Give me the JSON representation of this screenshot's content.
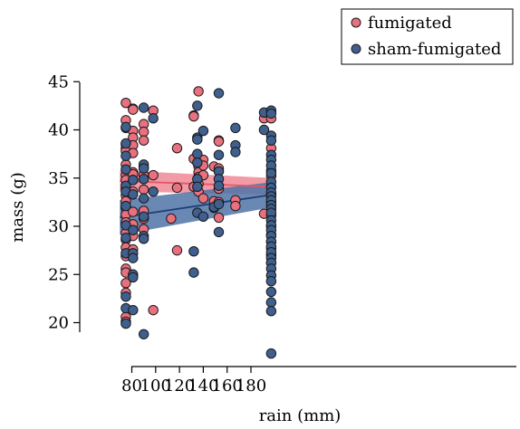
{
  "chart_data": {
    "type": "scatter",
    "title": "",
    "xlabel": "rain (mm)",
    "ylabel": "mass (g)",
    "xlim": [
      64,
      200
    ],
    "ylim": [
      16,
      46.5
    ],
    "xticks": [
      80,
      100,
      120,
      140,
      160,
      180
    ],
    "yticks": [
      20,
      25,
      30,
      35,
      40,
      45
    ],
    "grid": false,
    "legend_position": "top-right",
    "series": [
      {
        "name": "fumigated",
        "color": "#e8707f",
        "band_color": "#f08a96",
        "trend": {
          "x": [
            70,
            199
          ],
          "y": [
            34.7,
            34.1
          ],
          "lower": [
            33.6,
            33.3
          ],
          "upper": [
            35.8,
            35.0
          ]
        },
        "points": [
          [
            75,
            42.8
          ],
          [
            75,
            41.0
          ],
          [
            75,
            40.2
          ],
          [
            75,
            38.5
          ],
          [
            75,
            38.1
          ],
          [
            75,
            37.8
          ],
          [
            75,
            36.4
          ],
          [
            75,
            35.3
          ],
          [
            75,
            34.8
          ],
          [
            75,
            33.9
          ],
          [
            75,
            33.2
          ],
          [
            75,
            32.6
          ],
          [
            75,
            31.9
          ],
          [
            75,
            31.2
          ],
          [
            75,
            30.4
          ],
          [
            75,
            29.3
          ],
          [
            75,
            28.6
          ],
          [
            75,
            27.8
          ],
          [
            75,
            26.9
          ],
          [
            75,
            25.6
          ],
          [
            75,
            25.2
          ],
          [
            75,
            24.1
          ],
          [
            75,
            23.1
          ],
          [
            75,
            20.6
          ],
          [
            75,
            20.1
          ],
          [
            81,
            42.2
          ],
          [
            81,
            42.1
          ],
          [
            81,
            39.9
          ],
          [
            81,
            39.2
          ],
          [
            81,
            38.4
          ],
          [
            81,
            37.6
          ],
          [
            81,
            35.6
          ],
          [
            81,
            35.4
          ],
          [
            81,
            34.8
          ],
          [
            81,
            33.6
          ],
          [
            81,
            31.5
          ],
          [
            81,
            30.2
          ],
          [
            81,
            29.0
          ],
          [
            81,
            27.6
          ],
          [
            90,
            40.6
          ],
          [
            90,
            39.8
          ],
          [
            90,
            38.9
          ],
          [
            90,
            36.1
          ],
          [
            90,
            35.3
          ],
          [
            90,
            33.8
          ],
          [
            90,
            31.6
          ],
          [
            90,
            30.8
          ],
          [
            90,
            29.7
          ],
          [
            98,
            42.0
          ],
          [
            98,
            35.3
          ],
          [
            98,
            21.3
          ],
          [
            113,
            30.8
          ],
          [
            118,
            38.1
          ],
          [
            118,
            34.0
          ],
          [
            118,
            27.5
          ],
          [
            132,
            41.5
          ],
          [
            132,
            41.4
          ],
          [
            132,
            37.0
          ],
          [
            132,
            34.1
          ],
          [
            136,
            44.0
          ],
          [
            136,
            36.2
          ],
          [
            136,
            35.6
          ],
          [
            136,
            35.1
          ],
          [
            136,
            34.4
          ],
          [
            136,
            33.6
          ],
          [
            140,
            36.9
          ],
          [
            140,
            36.3
          ],
          [
            140,
            35.3
          ],
          [
            140,
            32.9
          ],
          [
            149,
            36.2
          ],
          [
            149,
            32.6
          ],
          [
            149,
            31.9
          ],
          [
            153,
            38.9
          ],
          [
            153,
            38.8
          ],
          [
            153,
            36.0
          ],
          [
            153,
            35.7
          ],
          [
            153,
            33.9
          ],
          [
            153,
            32.5
          ],
          [
            153,
            30.9
          ],
          [
            167,
            32.7
          ],
          [
            167,
            32.1
          ],
          [
            191,
            41.2
          ],
          [
            191,
            31.3
          ],
          [
            197,
            41.2
          ],
          [
            197,
            38.1
          ],
          [
            197,
            35.8
          ],
          [
            197,
            35.2
          ],
          [
            197,
            34.1
          ],
          [
            197,
            33.3
          ],
          [
            197,
            32.5
          ],
          [
            197,
            31.9
          ],
          [
            197,
            31.1
          ],
          [
            197,
            30.0
          ],
          [
            197,
            29.1
          ],
          [
            197,
            28.4
          ],
          [
            197,
            27.7
          ],
          [
            197,
            27.0
          ],
          [
            197,
            26.2
          ]
        ]
      },
      {
        "name": "sham-fumigated",
        "color": "#3f5f8e",
        "band_color": "#4f73a6",
        "trend": {
          "x": [
            70,
            199
          ],
          "y": [
            30.9,
            33.3
          ],
          "lower": [
            29.1,
            32.0
          ],
          "upper": [
            32.7,
            34.6
          ]
        },
        "points": [
          [
            75,
            40.3
          ],
          [
            75,
            38.6
          ],
          [
            75,
            37.3
          ],
          [
            75,
            35.9
          ],
          [
            75,
            34.2
          ],
          [
            75,
            33.6
          ],
          [
            75,
            32.1
          ],
          [
            75,
            30.1
          ],
          [
            75,
            28.8
          ],
          [
            75,
            27.2
          ],
          [
            75,
            22.7
          ],
          [
            75,
            21.5
          ],
          [
            75,
            19.9
          ],
          [
            81,
            34.8
          ],
          [
            81,
            33.3
          ],
          [
            81,
            29.6
          ],
          [
            81,
            27.2
          ],
          [
            81,
            26.7
          ],
          [
            81,
            25.0
          ],
          [
            81,
            24.7
          ],
          [
            81,
            21.3
          ],
          [
            90,
            42.3
          ],
          [
            90,
            36.4
          ],
          [
            90,
            36.0
          ],
          [
            90,
            34.9
          ],
          [
            90,
            32.9
          ],
          [
            90,
            31.0
          ],
          [
            90,
            29.0
          ],
          [
            90,
            28.7
          ],
          [
            90,
            18.8
          ],
          [
            98,
            41.2
          ],
          [
            98,
            33.6
          ],
          [
            132,
            27.4
          ],
          [
            132,
            25.2
          ],
          [
            135,
            42.5
          ],
          [
            135,
            39.2
          ],
          [
            135,
            39.0
          ],
          [
            135,
            37.5
          ],
          [
            135,
            36.6
          ],
          [
            135,
            34.9
          ],
          [
            135,
            34.1
          ],
          [
            135,
            31.4
          ],
          [
            140,
            39.9
          ],
          [
            140,
            31.0
          ],
          [
            149,
            32.0
          ],
          [
            153,
            43.8
          ],
          [
            153,
            37.4
          ],
          [
            153,
            35.7
          ],
          [
            153,
            34.9
          ],
          [
            153,
            34.2
          ],
          [
            153,
            32.3
          ],
          [
            153,
            29.4
          ],
          [
            167,
            40.2
          ],
          [
            167,
            38.4
          ],
          [
            167,
            37.7
          ],
          [
            191,
            41.8
          ],
          [
            191,
            40.0
          ],
          [
            197,
            42.0
          ],
          [
            197,
            41.7
          ],
          [
            197,
            39.4
          ],
          [
            197,
            38.9
          ],
          [
            197,
            37.4
          ],
          [
            197,
            36.9
          ],
          [
            197,
            36.3
          ],
          [
            197,
            35.5
          ],
          [
            197,
            34.6
          ],
          [
            197,
            34.0
          ],
          [
            197,
            33.5
          ],
          [
            197,
            33.1
          ],
          [
            197,
            32.7
          ],
          [
            197,
            32.2
          ],
          [
            197,
            31.8
          ],
          [
            197,
            31.4
          ],
          [
            197,
            30.6
          ],
          [
            197,
            30.1
          ],
          [
            197,
            29.6
          ],
          [
            197,
            29.0
          ],
          [
            197,
            28.4
          ],
          [
            197,
            27.9
          ],
          [
            197,
            27.3
          ],
          [
            197,
            26.7
          ],
          [
            197,
            26.2
          ],
          [
            197,
            25.6
          ],
          [
            197,
            24.9
          ],
          [
            197,
            24.3
          ],
          [
            197,
            23.2
          ],
          [
            197,
            22.1
          ],
          [
            197,
            21.2
          ],
          [
            197,
            16.8
          ]
        ]
      }
    ]
  }
}
